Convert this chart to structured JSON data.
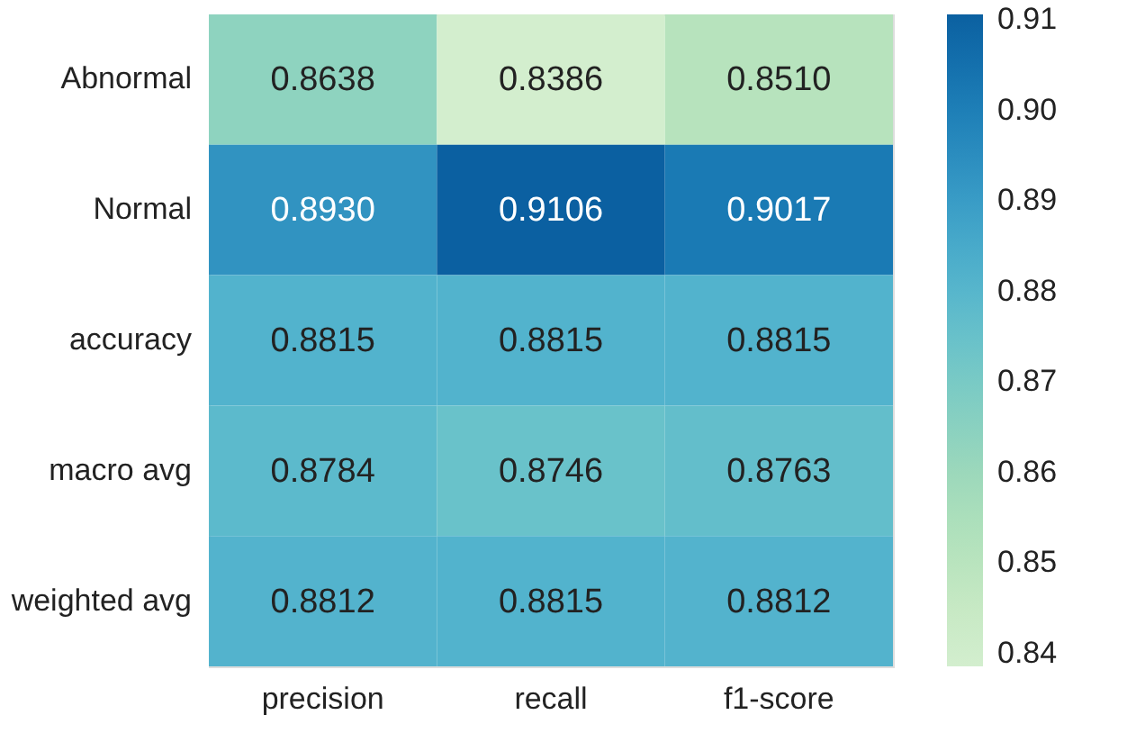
{
  "chart_data": {
    "type": "heatmap",
    "categories": [
      "precision",
      "recall",
      "f1-score"
    ],
    "y_categories": [
      "Abnormal",
      "Normal",
      "accuracy",
      "macro avg",
      "weighted avg"
    ],
    "cells": [
      [
        0.8638,
        0.8386,
        0.851
      ],
      [
        0.893,
        0.9106,
        0.9017
      ],
      [
        0.8815,
        0.8815,
        0.8815
      ],
      [
        0.8784,
        0.8746,
        0.8763
      ],
      [
        0.8812,
        0.8815,
        0.8812
      ]
    ],
    "cell_labels": [
      [
        "0.8638",
        "0.8386",
        "0.8510"
      ],
      [
        "0.8930",
        "0.9106",
        "0.9017"
      ],
      [
        "0.8815",
        "0.8815",
        "0.8815"
      ],
      [
        "0.8784",
        "0.8746",
        "0.8763"
      ],
      [
        "0.8812",
        "0.8815",
        "0.8812"
      ]
    ],
    "clim": [
      0.8386,
      0.9106
    ],
    "cticks": [
      {
        "value": 0.84,
        "label": "0.84"
      },
      {
        "value": 0.85,
        "label": "0.85"
      },
      {
        "value": 0.86,
        "label": "0.86"
      },
      {
        "value": 0.87,
        "label": "0.87"
      },
      {
        "value": 0.88,
        "label": "0.88"
      },
      {
        "value": 0.89,
        "label": "0.89"
      },
      {
        "value": 0.9,
        "label": "0.90"
      },
      {
        "value": 0.91,
        "label": "0.91"
      }
    ]
  }
}
